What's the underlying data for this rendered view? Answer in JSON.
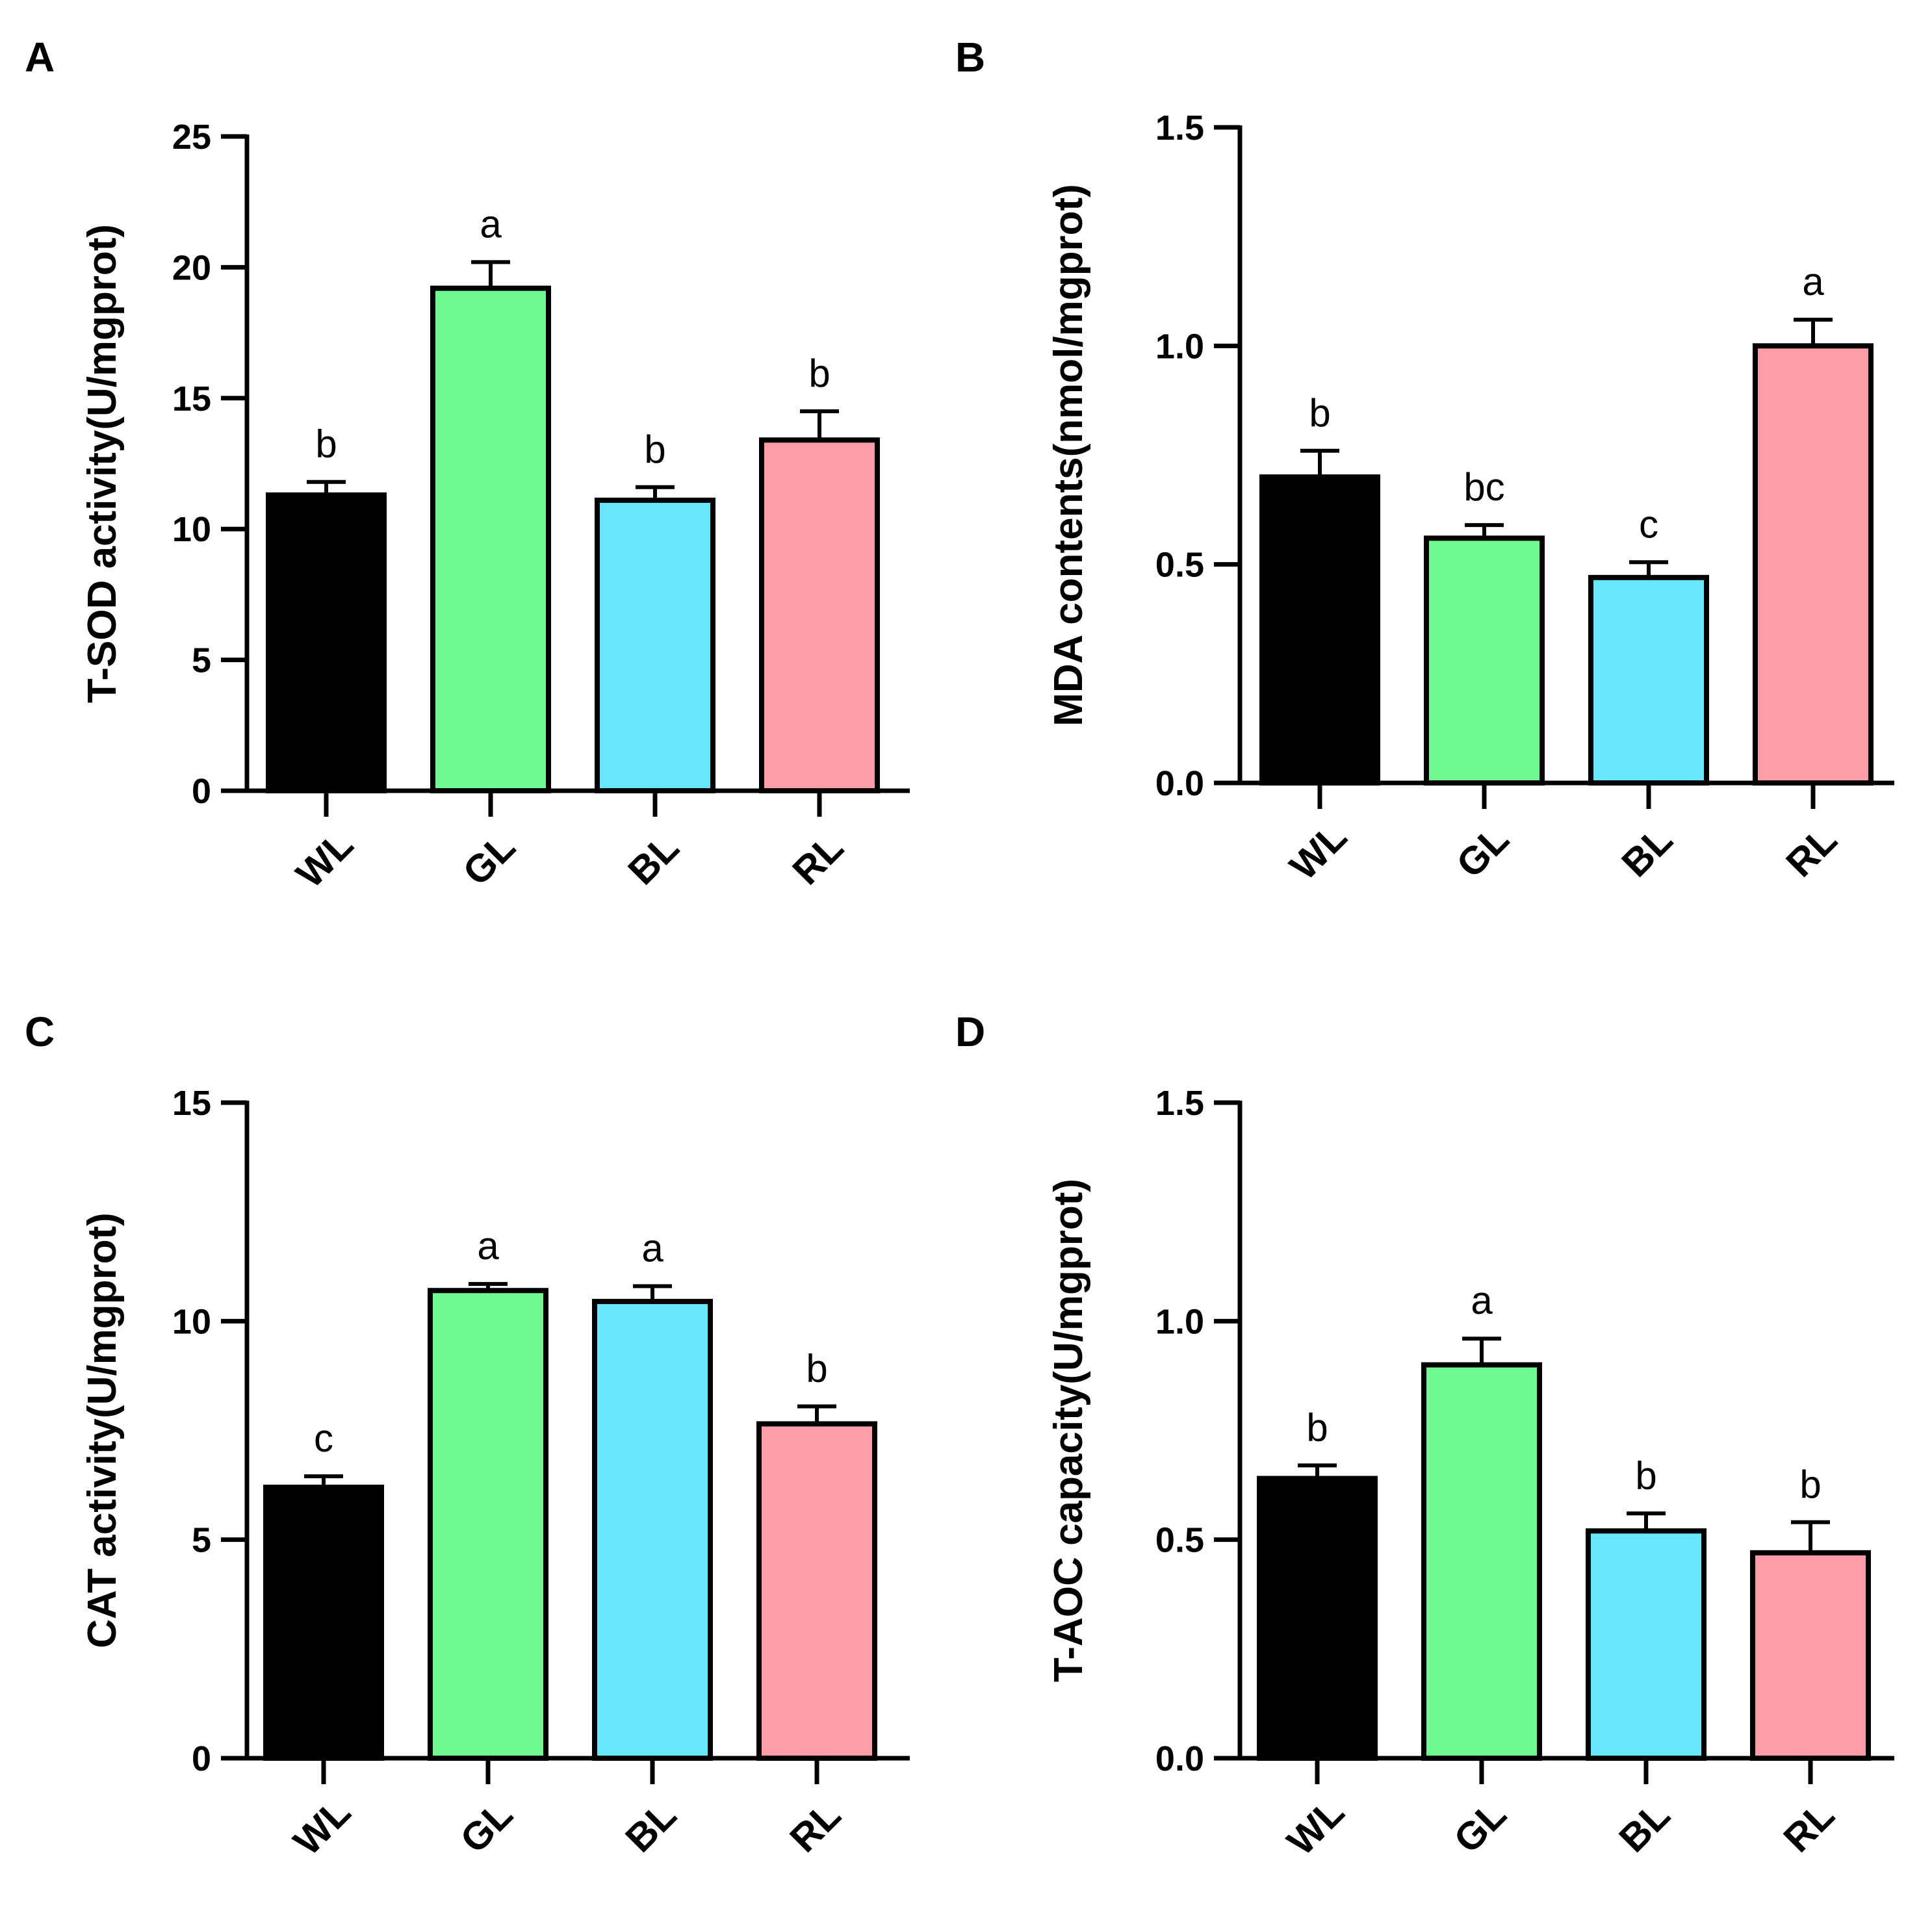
{
  "chart_data": [
    {
      "type": "bar",
      "panel": "A",
      "ylabel": "T-SOD activity(U/mgprot)",
      "categories": [
        "WL",
        "GL",
        "BL",
        "RL"
      ],
      "values": [
        11.3,
        19.2,
        11.1,
        13.4
      ],
      "errors": [
        0.5,
        1.0,
        0.5,
        1.1
      ],
      "significance": [
        "b",
        "a",
        "b",
        "b"
      ],
      "ylim": [
        0,
        25
      ],
      "yticks": [
        0,
        5,
        10,
        15,
        20,
        25
      ],
      "ytick_labels": [
        "0",
        "5",
        "10",
        "15",
        "20",
        "25"
      ],
      "colors": [
        "#000000",
        "#70fa90",
        "#68e6fb",
        "#fe9ca8"
      ]
    },
    {
      "type": "bar",
      "panel": "B",
      "ylabel": "MDA contents(nmol/mgprot)",
      "categories": [
        "WL",
        "GL",
        "BL",
        "RL"
      ],
      "values": [
        0.7,
        0.56,
        0.47,
        1.0
      ],
      "errors": [
        0.06,
        0.03,
        0.035,
        0.06
      ],
      "significance": [
        "b",
        "bc",
        "c",
        "a"
      ],
      "ylim": [
        0,
        1.5
      ],
      "yticks": [
        0,
        0.5,
        1.0,
        1.5
      ],
      "ytick_labels": [
        "0.0",
        "0.5",
        "1.0",
        "1.5"
      ],
      "colors": [
        "#000000",
        "#70fa90",
        "#68e6fb",
        "#fe9ca8"
      ]
    },
    {
      "type": "bar",
      "panel": "C",
      "ylabel": "CAT activity(U/mgprot)",
      "categories": [
        "WL",
        "GL",
        "BL",
        "RL"
      ],
      "values": [
        6.2,
        10.7,
        10.45,
        7.65
      ],
      "errors": [
        0.25,
        0.15,
        0.35,
        0.4
      ],
      "significance": [
        "c",
        "a",
        "a",
        "b"
      ],
      "ylim": [
        0,
        15
      ],
      "yticks": [
        0,
        5,
        10,
        15
      ],
      "ytick_labels": [
        "0",
        "5",
        "10",
        "15"
      ],
      "colors": [
        "#000000",
        "#70fa90",
        "#68e6fb",
        "#fe9ca8"
      ]
    },
    {
      "type": "bar",
      "panel": "D",
      "ylabel": "T-AOC capacity(U/mgprot)",
      "categories": [
        "WL",
        "GL",
        "BL",
        "RL"
      ],
      "values": [
        0.64,
        0.9,
        0.52,
        0.47
      ],
      "errors": [
        0.03,
        0.06,
        0.04,
        0.07
      ],
      "significance": [
        "b",
        "a",
        "b",
        "b"
      ],
      "ylim": [
        0,
        1.5
      ],
      "yticks": [
        0,
        0.5,
        1.0,
        1.5
      ],
      "ytick_labels": [
        "0.0",
        "0.5",
        "1.0",
        "1.5"
      ],
      "colors": [
        "#000000",
        "#70fa90",
        "#68e6fb",
        "#fe9ca8"
      ]
    }
  ]
}
